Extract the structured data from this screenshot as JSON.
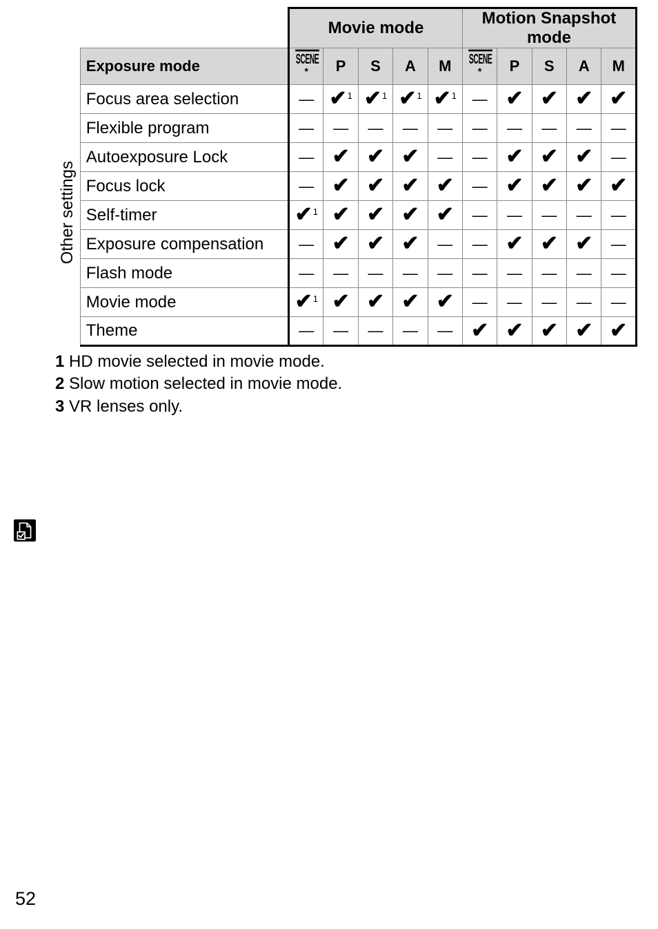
{
  "table": {
    "group_headers": [
      "Movie mode",
      "Motion Snapshot mode"
    ],
    "mode_columns": [
      "SCENE",
      "P",
      "S",
      "A",
      "M",
      "SCENE",
      "P",
      "S",
      "A",
      "M"
    ],
    "exposure_row_label": "Exposure mode",
    "section_label": "Other settings",
    "rows": [
      {
        "label": "Focus area selection",
        "cells": [
          "—",
          "✔1",
          "✔1",
          "✔1",
          "✔1",
          "—",
          "✔",
          "✔",
          "✔",
          "✔"
        ]
      },
      {
        "label": "Flexible program",
        "cells": [
          "—",
          "—",
          "—",
          "—",
          "—",
          "—",
          "—",
          "—",
          "—",
          "—"
        ]
      },
      {
        "label": "Autoexposure Lock",
        "cells": [
          "—",
          "✔",
          "✔",
          "✔",
          "—",
          "—",
          "✔",
          "✔",
          "✔",
          "—"
        ]
      },
      {
        "label": "Focus lock",
        "cells": [
          "—",
          "✔",
          "✔",
          "✔",
          "✔",
          "—",
          "✔",
          "✔",
          "✔",
          "✔"
        ]
      },
      {
        "label": "Self-timer",
        "cells": [
          "✔1",
          "✔",
          "✔",
          "✔",
          "✔",
          "—",
          "—",
          "—",
          "—",
          "—"
        ]
      },
      {
        "label": "Exposure compensation",
        "cells": [
          "—",
          "✔",
          "✔",
          "✔",
          "—",
          "—",
          "✔",
          "✔",
          "✔",
          "—"
        ]
      },
      {
        "label": "Flash mode",
        "cells": [
          "—",
          "—",
          "—",
          "—",
          "—",
          "—",
          "—",
          "—",
          "—",
          "—"
        ]
      },
      {
        "label": "Movie mode",
        "cells": [
          "✔1",
          "✔",
          "✔",
          "✔",
          "✔",
          "—",
          "—",
          "—",
          "—",
          "—"
        ]
      },
      {
        "label": "Theme",
        "cells": [
          "—",
          "—",
          "—",
          "—",
          "—",
          "✔",
          "✔",
          "✔",
          "✔",
          "✔"
        ]
      }
    ]
  },
  "footnotes": [
    {
      "num": "1",
      "text": "HD movie selected in movie mode."
    },
    {
      "num": "2",
      "text": "Slow motion selected in movie mode."
    },
    {
      "num": "3",
      "text": "VR lenses only."
    }
  ],
  "page_number": "52",
  "glyphs": {
    "check": "✔",
    "dash": "—"
  }
}
